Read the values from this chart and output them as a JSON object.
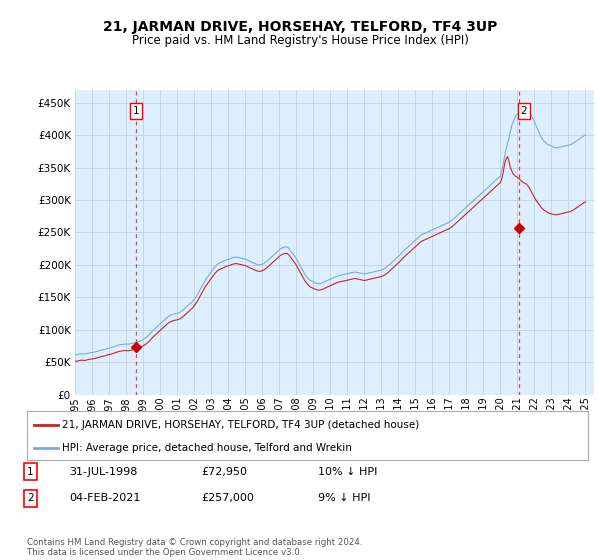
{
  "title": "21, JARMAN DRIVE, HORSEHAY, TELFORD, TF4 3UP",
  "subtitle": "Price paid vs. HM Land Registry's House Price Index (HPI)",
  "ytick_values": [
    0,
    50000,
    100000,
    150000,
    200000,
    250000,
    300000,
    350000,
    400000,
    450000
  ],
  "ylim": [
    0,
    470000
  ],
  "xlim_start": 1995.0,
  "xlim_end": 2025.5,
  "sale1_date": 1998.58,
  "sale1_price": 72950,
  "sale1_label": "1",
  "sale2_date": 2021.08,
  "sale2_price": 257000,
  "sale2_label": "2",
  "marker_color": "#cc0000",
  "hpi_line_color": "#7aabdb",
  "price_line_color": "#cc2222",
  "vline_color": "#dd4444",
  "chart_bg_color": "#ddeeff",
  "background_color": "#ffffff",
  "grid_color": "#bbccdd",
  "legend_label_price": "21, JARMAN DRIVE, HORSEHAY, TELFORD, TF4 3UP (detached house)",
  "legend_label_hpi": "HPI: Average price, detached house, Telford and Wrekin",
  "footer": "Contains HM Land Registry data © Crown copyright and database right 2024.\nThis data is licensed under the Open Government Licence v3.0.",
  "hpi_data_x": [
    1995.0,
    1995.083,
    1995.167,
    1995.25,
    1995.333,
    1995.417,
    1995.5,
    1995.583,
    1995.667,
    1995.75,
    1995.833,
    1995.917,
    1996.0,
    1996.083,
    1996.167,
    1996.25,
    1996.333,
    1996.417,
    1996.5,
    1996.583,
    1996.667,
    1996.75,
    1996.833,
    1996.917,
    1997.0,
    1997.083,
    1997.167,
    1997.25,
    1997.333,
    1997.417,
    1997.5,
    1997.583,
    1997.667,
    1997.75,
    1997.833,
    1997.917,
    1998.0,
    1998.083,
    1998.167,
    1998.25,
    1998.333,
    1998.417,
    1998.5,
    1998.583,
    1998.667,
    1998.75,
    1998.833,
    1998.917,
    1999.0,
    1999.083,
    1999.167,
    1999.25,
    1999.333,
    1999.417,
    1999.5,
    1999.583,
    1999.667,
    1999.75,
    1999.833,
    1999.917,
    2000.0,
    2000.083,
    2000.167,
    2000.25,
    2000.333,
    2000.417,
    2000.5,
    2000.583,
    2000.667,
    2000.75,
    2000.833,
    2000.917,
    2001.0,
    2001.083,
    2001.167,
    2001.25,
    2001.333,
    2001.417,
    2001.5,
    2001.583,
    2001.667,
    2001.75,
    2001.833,
    2001.917,
    2002.0,
    2002.083,
    2002.167,
    2002.25,
    2002.333,
    2002.417,
    2002.5,
    2002.583,
    2002.667,
    2002.75,
    2002.833,
    2002.917,
    2003.0,
    2003.083,
    2003.167,
    2003.25,
    2003.333,
    2003.417,
    2003.5,
    2003.583,
    2003.667,
    2003.75,
    2003.833,
    2003.917,
    2004.0,
    2004.083,
    2004.167,
    2004.25,
    2004.333,
    2004.417,
    2004.5,
    2004.583,
    2004.667,
    2004.75,
    2004.833,
    2004.917,
    2005.0,
    2005.083,
    2005.167,
    2005.25,
    2005.333,
    2005.417,
    2005.5,
    2005.583,
    2005.667,
    2005.75,
    2005.833,
    2005.917,
    2006.0,
    2006.083,
    2006.167,
    2006.25,
    2006.333,
    2006.417,
    2006.5,
    2006.583,
    2006.667,
    2006.75,
    2006.833,
    2006.917,
    2007.0,
    2007.083,
    2007.167,
    2007.25,
    2007.333,
    2007.417,
    2007.5,
    2007.583,
    2007.667,
    2007.75,
    2007.833,
    2007.917,
    2008.0,
    2008.083,
    2008.167,
    2008.25,
    2008.333,
    2008.417,
    2008.5,
    2008.583,
    2008.667,
    2008.75,
    2008.833,
    2008.917,
    2009.0,
    2009.083,
    2009.167,
    2009.25,
    2009.333,
    2009.417,
    2009.5,
    2009.583,
    2009.667,
    2009.75,
    2009.833,
    2009.917,
    2010.0,
    2010.083,
    2010.167,
    2010.25,
    2010.333,
    2010.417,
    2010.5,
    2010.583,
    2010.667,
    2010.75,
    2010.833,
    2010.917,
    2011.0,
    2011.083,
    2011.167,
    2011.25,
    2011.333,
    2011.417,
    2011.5,
    2011.583,
    2011.667,
    2011.75,
    2011.833,
    2011.917,
    2012.0,
    2012.083,
    2012.167,
    2012.25,
    2012.333,
    2012.417,
    2012.5,
    2012.583,
    2012.667,
    2012.75,
    2012.833,
    2012.917,
    2013.0,
    2013.083,
    2013.167,
    2013.25,
    2013.333,
    2013.417,
    2013.5,
    2013.583,
    2013.667,
    2013.75,
    2013.833,
    2013.917,
    2014.0,
    2014.083,
    2014.167,
    2014.25,
    2014.333,
    2014.417,
    2014.5,
    2014.583,
    2014.667,
    2014.75,
    2014.833,
    2014.917,
    2015.0,
    2015.083,
    2015.167,
    2015.25,
    2015.333,
    2015.417,
    2015.5,
    2015.583,
    2015.667,
    2015.75,
    2015.833,
    2015.917,
    2016.0,
    2016.083,
    2016.167,
    2016.25,
    2016.333,
    2016.417,
    2016.5,
    2016.583,
    2016.667,
    2016.75,
    2016.833,
    2016.917,
    2017.0,
    2017.083,
    2017.167,
    2017.25,
    2017.333,
    2017.417,
    2017.5,
    2017.583,
    2017.667,
    2017.75,
    2017.833,
    2017.917,
    2018.0,
    2018.083,
    2018.167,
    2018.25,
    2018.333,
    2018.417,
    2018.5,
    2018.583,
    2018.667,
    2018.75,
    2018.833,
    2018.917,
    2019.0,
    2019.083,
    2019.167,
    2019.25,
    2019.333,
    2019.417,
    2019.5,
    2019.583,
    2019.667,
    2019.75,
    2019.833,
    2019.917,
    2020.0,
    2020.083,
    2020.167,
    2020.25,
    2020.333,
    2020.417,
    2020.5,
    2020.583,
    2020.667,
    2020.75,
    2020.833,
    2020.917,
    2021.0,
    2021.083,
    2021.167,
    2021.25,
    2021.333,
    2021.417,
    2021.5,
    2021.583,
    2021.667,
    2021.75,
    2021.833,
    2021.917,
    2022.0,
    2022.083,
    2022.167,
    2022.25,
    2022.333,
    2022.417,
    2022.5,
    2022.583,
    2022.667,
    2022.75,
    2022.833,
    2022.917,
    2023.0,
    2023.083,
    2023.167,
    2023.25,
    2023.333,
    2023.417,
    2023.5,
    2023.583,
    2023.667,
    2023.75,
    2023.833,
    2023.917,
    2024.0,
    2024.083,
    2024.167,
    2024.25,
    2024.333,
    2024.417,
    2024.5,
    2024.583,
    2024.667,
    2024.75,
    2024.833,
    2024.917,
    2025.0
  ],
  "hpi_data_y": [
    62000,
    61500,
    62200,
    62800,
    63100,
    63400,
    63000,
    62800,
    63500,
    64000,
    64500,
    65000,
    65200,
    65500,
    66000,
    66500,
    67200,
    67800,
    68500,
    69000,
    69500,
    70000,
    70800,
    71500,
    72000,
    72500,
    73000,
    73800,
    74500,
    75200,
    76000,
    76800,
    77200,
    77500,
    77800,
    78000,
    78200,
    78000,
    77800,
    78500,
    79000,
    79500,
    80000,
    80800,
    81500,
    82000,
    83000,
    84000,
    85000,
    86500,
    88000,
    90000,
    92000,
    94000,
    96500,
    99000,
    101000,
    103000,
    105000,
    107000,
    109000,
    111000,
    113000,
    115000,
    117000,
    119000,
    121000,
    122000,
    123000,
    124000,
    124500,
    125000,
    125500,
    126000,
    127000,
    128500,
    130000,
    132000,
    134000,
    136000,
    138000,
    140000,
    142000,
    144000,
    147000,
    150000,
    153000,
    157000,
    161000,
    165000,
    169000,
    173000,
    177000,
    180000,
    183000,
    186000,
    189000,
    192000,
    195000,
    198000,
    200000,
    202000,
    203000,
    204000,
    205000,
    206000,
    207000,
    208000,
    208500,
    209000,
    210000,
    211000,
    211500,
    212000,
    212000,
    211500,
    211000,
    210500,
    210000,
    209500,
    209000,
    208000,
    207000,
    206000,
    205000,
    204000,
    203000,
    202000,
    201000,
    200500,
    200000,
    200500,
    201000,
    202000,
    203500,
    205000,
    207000,
    209000,
    211000,
    213000,
    215000,
    217000,
    219000,
    221000,
    223000,
    225000,
    226000,
    227000,
    227500,
    228000,
    227000,
    225000,
    222000,
    219000,
    216000,
    213000,
    210000,
    206000,
    202000,
    198000,
    194000,
    190000,
    186000,
    183000,
    180000,
    178000,
    176000,
    175000,
    174000,
    173000,
    172000,
    171500,
    171000,
    171500,
    172000,
    173000,
    174000,
    175000,
    176000,
    177000,
    178000,
    179000,
    180000,
    181000,
    182000,
    183000,
    183500,
    184000,
    184500,
    185000,
    185500,
    186000,
    186500,
    187000,
    187500,
    188000,
    188500,
    189000,
    189000,
    188500,
    188000,
    187500,
    187000,
    186500,
    186000,
    186500,
    187000,
    187500,
    188000,
    188500,
    189000,
    189500,
    190000,
    190500,
    191000,
    191500,
    192000,
    193000,
    194000,
    195500,
    197000,
    199000,
    201000,
    203000,
    205000,
    207000,
    209000,
    211000,
    213000,
    215000,
    217500,
    220000,
    222000,
    224000,
    226000,
    228000,
    230000,
    232000,
    234000,
    236000,
    238000,
    240000,
    242000,
    244000,
    246000,
    247000,
    248000,
    249000,
    250000,
    251000,
    252000,
    253000,
    254000,
    255000,
    256000,
    257000,
    258000,
    259000,
    260000,
    261000,
    262000,
    263000,
    264000,
    265000,
    266000,
    267500,
    269000,
    271000,
    273000,
    275000,
    277000,
    279000,
    281000,
    283000,
    285000,
    287000,
    289000,
    291000,
    293000,
    295000,
    297000,
    299000,
    301000,
    303000,
    305000,
    307000,
    309000,
    311000,
    313000,
    315000,
    317000,
    319000,
    321000,
    323000,
    325000,
    327000,
    329000,
    331000,
    333000,
    335000,
    337000,
    345000,
    355000,
    368000,
    378000,
    387000,
    395000,
    405000,
    415000,
    420000,
    425000,
    430000,
    432000,
    435000,
    438000,
    440000,
    442000,
    443000,
    442000,
    440000,
    437000,
    433000,
    429000,
    425000,
    420000,
    415000,
    410000,
    405000,
    400000,
    396000,
    393000,
    390000,
    388000,
    386000,
    385000,
    384000,
    383000,
    382000,
    381000,
    380000,
    380500,
    381000,
    381500,
    382000,
    382500,
    383000,
    383500,
    384000,
    384500,
    385000,
    386000,
    387000,
    388500,
    390000,
    391500,
    393000,
    394500,
    396000,
    397500,
    399000,
    400000
  ],
  "price_data_x": [
    1995.0,
    1995.083,
    1995.167,
    1995.25,
    1995.333,
    1995.417,
    1995.5,
    1995.583,
    1995.667,
    1995.75,
    1995.833,
    1995.917,
    1996.0,
    1996.083,
    1996.167,
    1996.25,
    1996.333,
    1996.417,
    1996.5,
    1996.583,
    1996.667,
    1996.75,
    1996.833,
    1996.917,
    1997.0,
    1997.083,
    1997.167,
    1997.25,
    1997.333,
    1997.417,
    1997.5,
    1997.583,
    1997.667,
    1997.75,
    1997.833,
    1997.917,
    1998.0,
    1998.083,
    1998.167,
    1998.25,
    1998.333,
    1998.417,
    1998.5,
    1998.583,
    1998.667,
    1998.75,
    1998.833,
    1998.917,
    1999.0,
    1999.083,
    1999.167,
    1999.25,
    1999.333,
    1999.417,
    1999.5,
    1999.583,
    1999.667,
    1999.75,
    1999.833,
    1999.917,
    2000.0,
    2000.083,
    2000.167,
    2000.25,
    2000.333,
    2000.417,
    2000.5,
    2000.583,
    2000.667,
    2000.75,
    2000.833,
    2000.917,
    2001.0,
    2001.083,
    2001.167,
    2001.25,
    2001.333,
    2001.417,
    2001.5,
    2001.583,
    2001.667,
    2001.75,
    2001.833,
    2001.917,
    2002.0,
    2002.083,
    2002.167,
    2002.25,
    2002.333,
    2002.417,
    2002.5,
    2002.583,
    2002.667,
    2002.75,
    2002.833,
    2002.917,
    2003.0,
    2003.083,
    2003.167,
    2003.25,
    2003.333,
    2003.417,
    2003.5,
    2003.583,
    2003.667,
    2003.75,
    2003.833,
    2003.917,
    2004.0,
    2004.083,
    2004.167,
    2004.25,
    2004.333,
    2004.417,
    2004.5,
    2004.583,
    2004.667,
    2004.75,
    2004.833,
    2004.917,
    2005.0,
    2005.083,
    2005.167,
    2005.25,
    2005.333,
    2005.417,
    2005.5,
    2005.583,
    2005.667,
    2005.75,
    2005.833,
    2005.917,
    2006.0,
    2006.083,
    2006.167,
    2006.25,
    2006.333,
    2006.417,
    2006.5,
    2006.583,
    2006.667,
    2006.75,
    2006.833,
    2006.917,
    2007.0,
    2007.083,
    2007.167,
    2007.25,
    2007.333,
    2007.417,
    2007.5,
    2007.583,
    2007.667,
    2007.75,
    2007.833,
    2007.917,
    2008.0,
    2008.083,
    2008.167,
    2008.25,
    2008.333,
    2008.417,
    2008.5,
    2008.583,
    2008.667,
    2008.75,
    2008.833,
    2008.917,
    2009.0,
    2009.083,
    2009.167,
    2009.25,
    2009.333,
    2009.417,
    2009.5,
    2009.583,
    2009.667,
    2009.75,
    2009.833,
    2009.917,
    2010.0,
    2010.083,
    2010.167,
    2010.25,
    2010.333,
    2010.417,
    2010.5,
    2010.583,
    2010.667,
    2010.75,
    2010.833,
    2010.917,
    2011.0,
    2011.083,
    2011.167,
    2011.25,
    2011.333,
    2011.417,
    2011.5,
    2011.583,
    2011.667,
    2011.75,
    2011.833,
    2011.917,
    2012.0,
    2012.083,
    2012.167,
    2012.25,
    2012.333,
    2012.417,
    2012.5,
    2012.583,
    2012.667,
    2012.75,
    2012.833,
    2012.917,
    2013.0,
    2013.083,
    2013.167,
    2013.25,
    2013.333,
    2013.417,
    2013.5,
    2013.583,
    2013.667,
    2013.75,
    2013.833,
    2013.917,
    2014.0,
    2014.083,
    2014.167,
    2014.25,
    2014.333,
    2014.417,
    2014.5,
    2014.583,
    2014.667,
    2014.75,
    2014.833,
    2014.917,
    2015.0,
    2015.083,
    2015.167,
    2015.25,
    2015.333,
    2015.417,
    2015.5,
    2015.583,
    2015.667,
    2015.75,
    2015.833,
    2015.917,
    2016.0,
    2016.083,
    2016.167,
    2016.25,
    2016.333,
    2016.417,
    2016.5,
    2016.583,
    2016.667,
    2016.75,
    2016.833,
    2016.917,
    2017.0,
    2017.083,
    2017.167,
    2017.25,
    2017.333,
    2017.417,
    2017.5,
    2017.583,
    2017.667,
    2017.75,
    2017.833,
    2017.917,
    2018.0,
    2018.083,
    2018.167,
    2018.25,
    2018.333,
    2018.417,
    2018.5,
    2018.583,
    2018.667,
    2018.75,
    2018.833,
    2018.917,
    2019.0,
    2019.083,
    2019.167,
    2019.25,
    2019.333,
    2019.417,
    2019.5,
    2019.583,
    2019.667,
    2019.75,
    2019.833,
    2019.917,
    2020.0,
    2020.083,
    2020.167,
    2020.25,
    2020.333,
    2020.417,
    2020.5,
    2020.583,
    2020.667,
    2020.75,
    2020.833,
    2020.917,
    2021.0,
    2021.083,
    2021.167,
    2021.25,
    2021.333,
    2021.417,
    2021.5,
    2021.583,
    2021.667,
    2021.75,
    2021.833,
    2021.917,
    2022.0,
    2022.083,
    2022.167,
    2022.25,
    2022.333,
    2022.417,
    2022.5,
    2022.583,
    2022.667,
    2022.75,
    2022.833,
    2022.917,
    2023.0,
    2023.083,
    2023.167,
    2023.25,
    2023.333,
    2023.417,
    2023.5,
    2023.583,
    2023.667,
    2023.75,
    2023.833,
    2023.917,
    2024.0,
    2024.083,
    2024.167,
    2024.25,
    2024.333,
    2024.417,
    2024.5,
    2024.583,
    2024.667,
    2024.75,
    2024.833,
    2024.917,
    2025.0
  ],
  "price_data_y": [
    52000,
    51500,
    52200,
    52800,
    53100,
    53400,
    53000,
    52800,
    53500,
    54000,
    54500,
    55000,
    55200,
    55500,
    56000,
    56500,
    57200,
    57800,
    58500,
    59000,
    59500,
    60000,
    60800,
    61500,
    62000,
    62500,
    63000,
    63800,
    64500,
    65200,
    66000,
    66800,
    67200,
    67500,
    67800,
    68000,
    68200,
    68000,
    67800,
    68500,
    69000,
    69500,
    70000,
    72950,
    71500,
    72000,
    73000,
    74000,
    75000,
    76500,
    78000,
    80000,
    82000,
    84000,
    86500,
    89000,
    91000,
    93000,
    95000,
    97000,
    99000,
    101000,
    103000,
    105000,
    107000,
    109000,
    111000,
    112000,
    113000,
    114000,
    114500,
    115000,
    115500,
    116000,
    117000,
    118500,
    120000,
    122000,
    124000,
    126000,
    128000,
    130000,
    132000,
    134000,
    137000,
    140000,
    143000,
    147000,
    151000,
    155000,
    159000,
    163000,
    167000,
    170000,
    173000,
    176000,
    179000,
    182000,
    185000,
    188000,
    190000,
    192000,
    193000,
    194000,
    195000,
    196000,
    197000,
    198000,
    198500,
    199000,
    200000,
    201000,
    201500,
    202000,
    202000,
    201500,
    201000,
    200500,
    200000,
    199500,
    199000,
    198000,
    197000,
    196000,
    195000,
    194000,
    193000,
    192000,
    191000,
    190500,
    190000,
    190500,
    191000,
    192000,
    193500,
    195000,
    197000,
    199000,
    201000,
    203000,
    205000,
    207000,
    209000,
    211000,
    213000,
    215000,
    216000,
    217000,
    217500,
    218000,
    217000,
    215000,
    212000,
    209000,
    206000,
    203000,
    200000,
    196000,
    192000,
    188000,
    184000,
    180000,
    176000,
    173000,
    170000,
    168000,
    166000,
    165000,
    164000,
    163000,
    162000,
    161500,
    161000,
    161500,
    162000,
    163000,
    164000,
    165000,
    166000,
    167000,
    168000,
    169000,
    170000,
    171000,
    172000,
    173000,
    173500,
    174000,
    174500,
    175000,
    175500,
    176000,
    176500,
    177000,
    177500,
    178000,
    178500,
    179000,
    179000,
    178500,
    178000,
    177500,
    177000,
    176500,
    176000,
    176500,
    177000,
    177500,
    178000,
    178500,
    179000,
    179500,
    180000,
    180500,
    181000,
    181500,
    182000,
    183000,
    184000,
    185500,
    187000,
    189000,
    191000,
    193000,
    195000,
    197000,
    199000,
    201000,
    203000,
    205000,
    207500,
    210000,
    212000,
    214000,
    216000,
    218000,
    220000,
    222000,
    224000,
    226000,
    228000,
    230000,
    232000,
    234000,
    236000,
    237000,
    238000,
    239000,
    240000,
    241000,
    242000,
    243000,
    244000,
    245000,
    246000,
    247000,
    248000,
    249000,
    250000,
    251000,
    252000,
    253000,
    254000,
    255000,
    256000,
    257500,
    259000,
    261000,
    263000,
    265000,
    267000,
    269000,
    271000,
    273000,
    275000,
    277000,
    279000,
    281000,
    283000,
    285000,
    287000,
    289000,
    291000,
    293000,
    295000,
    297000,
    299000,
    301000,
    303000,
    305000,
    307000,
    309000,
    311000,
    313000,
    315000,
    317000,
    319000,
    321000,
    323000,
    325000,
    327000,
    333000,
    343000,
    356000,
    363000,
    367000,
    360000,
    350000,
    345000,
    340000,
    338000,
    336000,
    335000,
    333000,
    331000,
    329000,
    327000,
    326000,
    325000,
    323000,
    320000,
    316000,
    312000,
    308000,
    304000,
    300000,
    297000,
    294000,
    291000,
    288000,
    286000,
    284000,
    283000,
    281000,
    280000,
    279000,
    278500,
    278000,
    277500,
    277000,
    277500,
    278000,
    278500,
    279000,
    279500,
    280000,
    280500,
    281000,
    281500,
    282000,
    283000,
    284000,
    285500,
    287000,
    288500,
    290000,
    291500,
    293000,
    294500,
    296000,
    297000
  ],
  "xtick_years": [
    1995,
    1996,
    1997,
    1998,
    1999,
    2000,
    2001,
    2002,
    2003,
    2004,
    2005,
    2006,
    2007,
    2008,
    2009,
    2010,
    2011,
    2012,
    2013,
    2014,
    2015,
    2016,
    2017,
    2018,
    2019,
    2020,
    2021,
    2022,
    2023,
    2024,
    2025
  ]
}
